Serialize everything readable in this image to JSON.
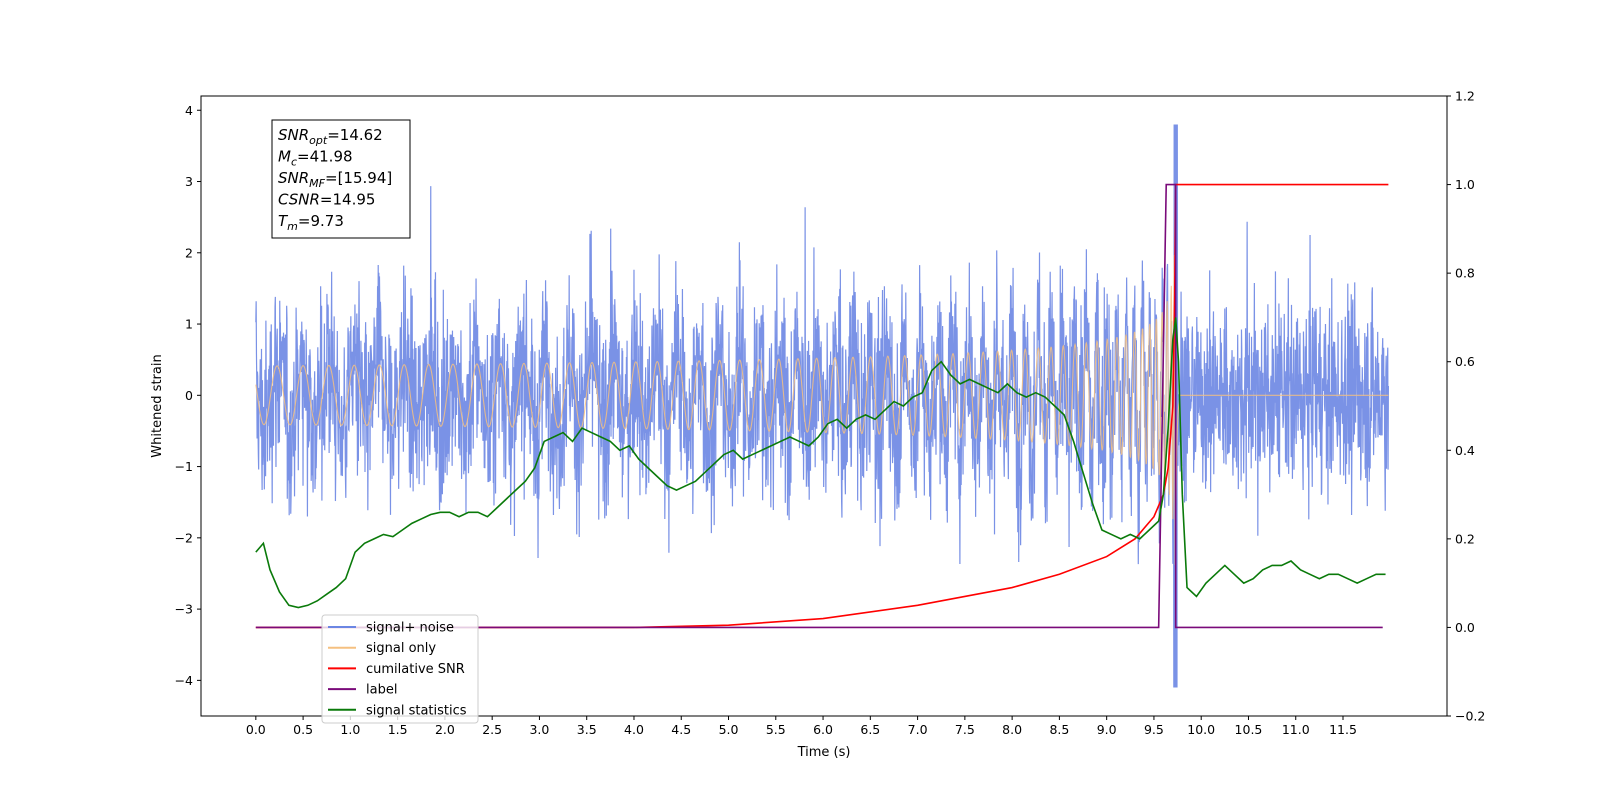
{
  "chart_data": {
    "type": "line",
    "xlabel": "Time (s)",
    "ylabel_left": "Whitened strain",
    "ylabel_right": "",
    "xlim": [
      -0.58,
      12.6
    ],
    "ylim_left": [
      -4.5,
      4.2
    ],
    "ylim_right": [
      -0.2,
      1.2
    ],
    "x_ticks": [
      "0.0",
      "0.5",
      "1.0",
      "1.5",
      "2.0",
      "2.5",
      "3.0",
      "3.5",
      "4.0",
      "4.5",
      "5.0",
      "5.5",
      "6.0",
      "6.5",
      "7.0",
      "7.5",
      "8.0",
      "8.5",
      "9.0",
      "9.5",
      "10.0",
      "10.5",
      "11.0",
      "11.5"
    ],
    "y_ticks_left": [
      "4",
      "3",
      "2",
      "1",
      "0",
      "−1",
      "−2",
      "−3",
      "−4"
    ],
    "y_ticks_right": [
      "1.2",
      "1.0",
      "0.8",
      "0.6",
      "0.4",
      "0.2",
      "0.0",
      "−0.2"
    ],
    "grid": false,
    "legend_position": "lower-left",
    "info_box": {
      "lines": [
        {
          "base": "SNR",
          "sub": "opt",
          "value": "=14.62"
        },
        {
          "base": "M",
          "sub": "c",
          "value": "=41.98"
        },
        {
          "base": "SNR",
          "sub": "MF",
          "value": "=[15.94]"
        },
        {
          "base": "CSNR",
          "sub": "",
          "value": "=14.95"
        },
        {
          "base": "T",
          "sub": "m",
          "value": "=9.73"
        }
      ]
    },
    "series": [
      {
        "name": "signal+ noise",
        "color": "#6b86e3",
        "axis": "left",
        "kind": "noise",
        "t_start": 0.0,
        "t_end": 11.98,
        "t_merger": 9.73,
        "typical_amplitude": 1.5,
        "max_value": 3.8,
        "min_value": -4.1
      },
      {
        "name": "signal only",
        "color": "#f5c080",
        "axis": "left",
        "kind": "chirp",
        "t_start": 0.0,
        "t_end": 11.98,
        "t_merger": 9.73,
        "peak_amplitude": 3.1
      },
      {
        "name": "cumilative SNR",
        "color": "#ff0000",
        "axis": "right",
        "x": [
          0.0,
          4.0,
          5.0,
          6.0,
          7.0,
          8.0,
          8.5,
          9.0,
          9.3,
          9.5,
          9.6,
          9.65,
          9.7,
          9.72,
          9.73,
          9.75,
          11.98
        ],
        "values": [
          0.0,
          0.0,
          0.005,
          0.02,
          0.05,
          0.09,
          0.12,
          0.16,
          0.2,
          0.25,
          0.3,
          0.36,
          0.5,
          0.75,
          1.0,
          1.0,
          1.0
        ]
      },
      {
        "name": "label",
        "color": "#7a0a7a",
        "axis": "right",
        "x": [
          0.0,
          9.55,
          9.63,
          9.63,
          9.7,
          9.7,
          9.73,
          9.73,
          11.92
        ],
        "values": [
          0.0,
          0.0,
          1.0,
          1.0,
          1.0,
          1.0,
          1.0,
          0.0,
          0.0
        ]
      },
      {
        "name": "signal statistics",
        "color": "#0a7a0a",
        "axis": "right",
        "x": [
          0.0,
          0.08,
          0.15,
          0.25,
          0.35,
          0.45,
          0.55,
          0.65,
          0.75,
          0.85,
          0.95,
          1.05,
          1.15,
          1.25,
          1.35,
          1.45,
          1.55,
          1.65,
          1.75,
          1.85,
          1.95,
          2.05,
          2.15,
          2.25,
          2.35,
          2.45,
          2.55,
          2.65,
          2.75,
          2.85,
          2.95,
          3.05,
          3.15,
          3.25,
          3.35,
          3.45,
          3.55,
          3.65,
          3.75,
          3.85,
          3.95,
          4.05,
          4.15,
          4.25,
          4.35,
          4.45,
          4.55,
          4.65,
          4.75,
          4.85,
          4.95,
          5.05,
          5.15,
          5.25,
          5.35,
          5.45,
          5.55,
          5.65,
          5.75,
          5.85,
          5.95,
          6.05,
          6.15,
          6.25,
          6.35,
          6.45,
          6.55,
          6.65,
          6.75,
          6.85,
          6.95,
          7.05,
          7.15,
          7.25,
          7.35,
          7.45,
          7.55,
          7.65,
          7.75,
          7.85,
          7.95,
          8.05,
          8.15,
          8.25,
          8.35,
          8.45,
          8.55,
          8.65,
          8.75,
          8.85,
          8.95,
          9.05,
          9.15,
          9.25,
          9.35,
          9.45,
          9.55,
          9.6,
          9.65,
          9.7,
          9.73,
          9.76,
          9.8,
          9.85,
          9.9,
          9.95,
          10.05,
          10.15,
          10.25,
          10.35,
          10.45,
          10.55,
          10.65,
          10.75,
          10.85,
          10.95,
          11.05,
          11.15,
          11.25,
          11.35,
          11.45,
          11.55,
          11.65,
          11.75,
          11.85,
          11.95
        ],
        "values": [
          0.17,
          0.19,
          0.13,
          0.08,
          0.05,
          0.045,
          0.05,
          0.06,
          0.075,
          0.09,
          0.11,
          0.17,
          0.19,
          0.2,
          0.21,
          0.205,
          0.22,
          0.235,
          0.245,
          0.255,
          0.26,
          0.26,
          0.25,
          0.26,
          0.26,
          0.25,
          0.27,
          0.29,
          0.31,
          0.33,
          0.36,
          0.42,
          0.43,
          0.44,
          0.42,
          0.45,
          0.44,
          0.43,
          0.42,
          0.4,
          0.41,
          0.38,
          0.36,
          0.34,
          0.32,
          0.31,
          0.32,
          0.33,
          0.35,
          0.37,
          0.39,
          0.4,
          0.38,
          0.39,
          0.4,
          0.41,
          0.42,
          0.43,
          0.42,
          0.41,
          0.43,
          0.46,
          0.47,
          0.45,
          0.47,
          0.48,
          0.47,
          0.49,
          0.51,
          0.5,
          0.52,
          0.53,
          0.58,
          0.6,
          0.57,
          0.55,
          0.56,
          0.55,
          0.54,
          0.53,
          0.55,
          0.53,
          0.52,
          0.53,
          0.52,
          0.5,
          0.48,
          0.42,
          0.35,
          0.28,
          0.22,
          0.21,
          0.2,
          0.21,
          0.2,
          0.22,
          0.24,
          0.3,
          0.45,
          0.65,
          0.7,
          0.6,
          0.3,
          0.09,
          0.08,
          0.07,
          0.1,
          0.12,
          0.14,
          0.12,
          0.1,
          0.11,
          0.13,
          0.14,
          0.14,
          0.15,
          0.13,
          0.12,
          0.11,
          0.12,
          0.12,
          0.11,
          0.1,
          0.11,
          0.12,
          0.12
        ]
      }
    ]
  }
}
